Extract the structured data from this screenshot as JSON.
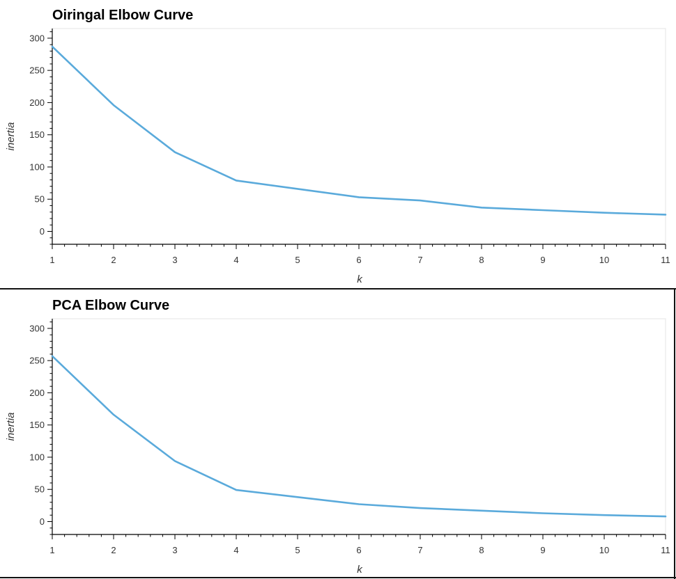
{
  "chart_data": [
    {
      "type": "line",
      "title": "Oiringal Elbow Curve",
      "xlabel": "k",
      "ylabel": "inertia",
      "x": [
        1,
        2,
        3,
        4,
        5,
        6,
        7,
        8,
        9,
        10,
        11
      ],
      "xticks": [
        1,
        2,
        3,
        4,
        5,
        6,
        7,
        8,
        9,
        10,
        11
      ],
      "yticks": [
        0,
        50,
        100,
        150,
        200,
        250,
        300
      ],
      "xlim": [
        1,
        11
      ],
      "ylim": [
        -20,
        315
      ],
      "series": [
        {
          "values": [
            287,
            196,
            123,
            79,
            66,
            53,
            48,
            37,
            33,
            29,
            26
          ]
        }
      ],
      "grid": false,
      "line_color": "#5aaadb"
    },
    {
      "type": "line",
      "title": "PCA Elbow Curve",
      "xlabel": "k",
      "ylabel": "inertia",
      "x": [
        1,
        2,
        3,
        4,
        5,
        6,
        7,
        8,
        9,
        10,
        11
      ],
      "xticks": [
        1,
        2,
        3,
        4,
        5,
        6,
        7,
        8,
        9,
        10,
        11
      ],
      "yticks": [
        0,
        50,
        100,
        150,
        200,
        250,
        300
      ],
      "xlim": [
        1,
        11
      ],
      "ylim": [
        -20,
        315
      ],
      "series": [
        {
          "values": [
            257,
            166,
            94,
            49,
            38,
            27,
            21,
            17,
            13,
            10,
            8
          ]
        }
      ],
      "grid": false,
      "line_color": "#5aaadb"
    }
  ]
}
